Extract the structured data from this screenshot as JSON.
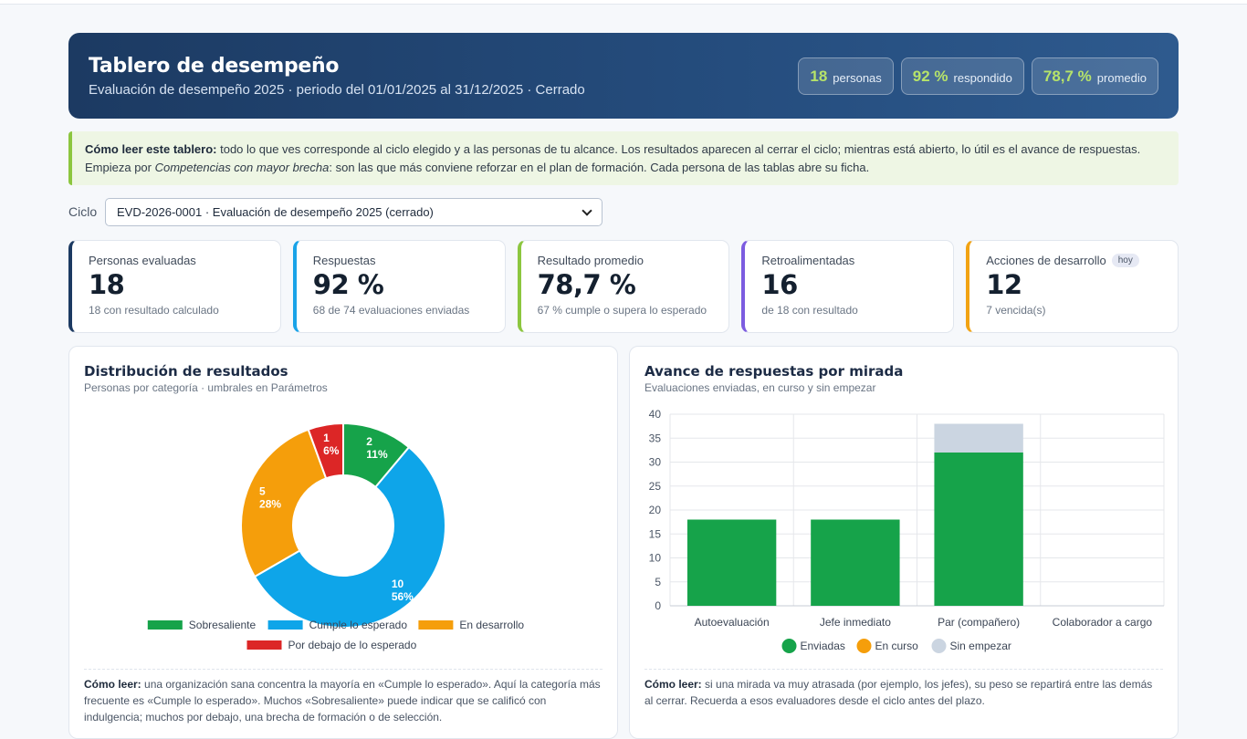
{
  "header": {
    "title": "Tablero de desempeño",
    "subtitle": "Evaluación de desempeño 2025 · periodo del 01/01/2025 al 31/12/2025 · Cerrado",
    "pills": [
      {
        "num": "18",
        "label": "personas"
      },
      {
        "num": "92 %",
        "label": "respondido"
      },
      {
        "num": "78,7 %",
        "label": "promedio"
      }
    ]
  },
  "hint": {
    "lead": "Cómo leer este tablero:",
    "text1": " todo lo que ves corresponde al ciclo elegido y a las personas de tu alcance. Los resultados aparecen al cerrar el ciclo; mientras está abierto, lo útil es el avance de respuestas. Empieza por ",
    "emph": "Competencias con mayor brecha",
    "text2": ": son las que más conviene reforzar en el plan de formación. Cada persona de las tablas abre su ficha."
  },
  "cycle": {
    "label": "Ciclo",
    "selected": "EVD-2026-0001 · Evaluación de desempeño 2025 (cerrado)"
  },
  "kpis": [
    {
      "label": "Personas evaluadas",
      "value": "18",
      "note": "18 con resultado calculado",
      "color": "#1c3a62",
      "badge": ""
    },
    {
      "label": "Respuestas",
      "value": "92 %",
      "note": "68 de 74 evaluaciones enviadas",
      "color": "#1aa3e8",
      "badge": ""
    },
    {
      "label": "Resultado promedio",
      "value": "78,7 %",
      "note": "67 % cumple o supera lo esperado",
      "color": "#8cc63f",
      "badge": ""
    },
    {
      "label": "Retroalimentadas",
      "value": "16",
      "note": "de 18 con resultado",
      "color": "#7c5ce0",
      "badge": ""
    },
    {
      "label": "Acciones de desarrollo",
      "value": "12",
      "note": "7 vencida(s)",
      "color": "#f2a313",
      "badge": "hoy"
    }
  ],
  "distribution": {
    "title": "Distribución de resultados",
    "subtitle": "Personas por categoría · umbrales en Parámetros",
    "foot_lead": "Cómo leer:",
    "foot_text": " una organización sana concentra la mayoría en «Cumple lo esperado». Aquí la categoría más frecuente es «Cumple lo esperado». Muchos «Sobresaliente» puede indicar que se calificó con indulgencia; muchos por debajo, una brecha de formación o de selección."
  },
  "progress": {
    "title": "Avance de respuestas por mirada",
    "subtitle": "Evaluaciones enviadas, en curso y sin empezar",
    "foot_lead": "Cómo leer:",
    "foot_text": " si una mirada va muy atrasada (por ejemplo, los jefes), su peso se repartirá entre las demás al cerrar. Recuerda a esos evaluadores desde el ciclo antes del plazo."
  },
  "chart_data": [
    {
      "type": "pie",
      "categories": [
        "Sobresaliente",
        "Cumple lo esperado",
        "En desarrollo",
        "Por debajo de lo esperado"
      ],
      "values": [
        2,
        10,
        5,
        1
      ],
      "percent_labels": [
        "11%",
        "56%",
        "28%",
        "6%"
      ],
      "colors": [
        "#16a34a",
        "#0ea5e9",
        "#f59e0b",
        "#dc2626"
      ],
      "legend": "bottom"
    },
    {
      "type": "bar",
      "stacked": true,
      "categories": [
        "Autoevaluación",
        "Jefe inmediato",
        "Par (compañero)",
        "Colaborador a cargo"
      ],
      "series": [
        {
          "name": "Enviadas",
          "values": [
            18,
            18,
            32,
            0
          ],
          "color": "#16a34a"
        },
        {
          "name": "En curso",
          "values": [
            0,
            0,
            0,
            0
          ],
          "color": "#f59e0b"
        },
        {
          "name": "Sin empezar",
          "values": [
            0,
            0,
            6,
            0
          ],
          "color": "#cbd5e1"
        }
      ],
      "ylim": [
        0,
        40
      ],
      "yticks": [
        0,
        5,
        10,
        15,
        20,
        25,
        30,
        35,
        40
      ],
      "grid": true,
      "legend": "bottom"
    }
  ]
}
